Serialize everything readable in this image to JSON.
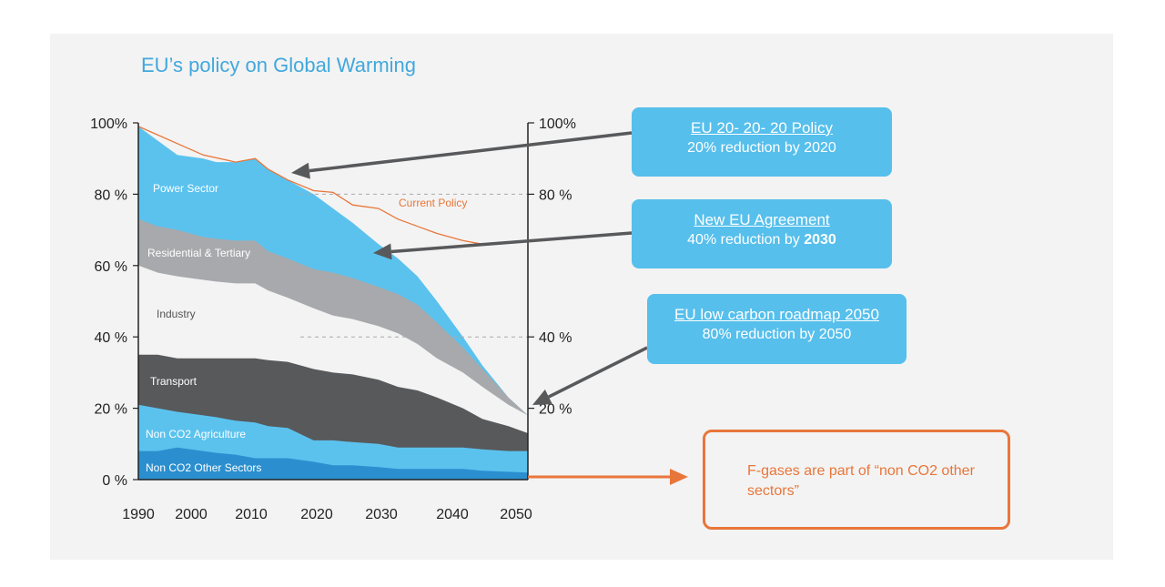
{
  "title": "EU’s policy on Global Warming",
  "chart_data": {
    "type": "area",
    "x": [
      1990,
      1993,
      1996,
      2000,
      2002,
      2005,
      2008,
      2010,
      2013,
      2017,
      2020,
      2023,
      2027,
      2030,
      2033,
      2036,
      2040,
      2043,
      2047,
      2050
    ],
    "x_ticks": [
      "1990",
      "2000",
      "2010",
      "2020",
      "2030",
      "2040",
      "2050"
    ],
    "y_ticks_left": [
      "0 %",
      "20 %",
      "40 %",
      "60 %",
      "80 %",
      "100%"
    ],
    "y_ticks_right": [
      "20 %",
      "40 %",
      "80 %",
      "100%"
    ],
    "ylim": [
      0,
      100
    ],
    "stacked_top": true,
    "series": [
      {
        "name": "Non CO2 Other Sectors",
        "color": "#2b8fcf",
        "values": [
          8,
          8,
          9,
          8,
          7.5,
          7,
          6,
          6,
          6,
          5,
          4,
          4,
          3.5,
          3,
          3,
          3,
          3,
          2.5,
          2.2,
          2
        ]
      },
      {
        "name": "Non CO2 Agriculture",
        "color": "#5bc2ee",
        "values": [
          21,
          20,
          19,
          18,
          17.5,
          16.5,
          16,
          15,
          14.5,
          11,
          11,
          10.5,
          10,
          9,
          9,
          9,
          9,
          8.5,
          8,
          8
        ]
      },
      {
        "name": "Transport",
        "color": "#58595b",
        "values": [
          35,
          35,
          34,
          34,
          34,
          34,
          34,
          33.5,
          33,
          31,
          30,
          29.5,
          28,
          26,
          25,
          23,
          20,
          17,
          15,
          13
        ]
      },
      {
        "name": "Industry",
        "color": "#f3f3f3",
        "values": [
          60,
          58,
          57,
          56,
          55.5,
          55,
          55,
          53,
          51,
          48,
          46,
          45,
          43,
          41,
          38,
          34,
          30,
          26,
          21,
          18
        ]
      },
      {
        "name": "Residential & Tertiary",
        "color": "#a7a9ac",
        "values": [
          73,
          71,
          70,
          68,
          67.5,
          67,
          67,
          64,
          62,
          59,
          58,
          56.5,
          54,
          52,
          49,
          44,
          37,
          31,
          23,
          18
        ]
      },
      {
        "name": "Power Sector",
        "color": "#5bc2ee",
        "values": [
          99,
          95,
          91,
          90,
          89,
          89,
          90,
          87,
          84,
          80,
          76,
          72,
          66,
          62,
          57,
          50,
          40,
          32,
          23,
          18
        ]
      }
    ],
    "current_policy": {
      "name": "Current Policy",
      "color": "#e8763a",
      "x": [
        1990,
        2000,
        2005,
        2008,
        2010,
        2013,
        2017,
        2020,
        2023,
        2027,
        2030,
        2033,
        2036,
        2040,
        2043
      ],
      "values": [
        99,
        91,
        89,
        90,
        87,
        84,
        81,
        80.5,
        77,
        76,
        73,
        71,
        69,
        67,
        66
      ]
    },
    "reference_lines": [
      80,
      40
    ],
    "annotations": [
      {
        "head": "EU 20- 20- 20 Policy",
        "sub": "20% reduction by 2020",
        "target_year": 2015,
        "target_value": 83
      },
      {
        "head": "New EU Agreement",
        "sub_prefix": "40% reduction by ",
        "sub_bold": "2030",
        "target_year": 2028,
        "target_value": 62
      },
      {
        "head": "EU low carbon roadmap 2050",
        "sub": "80% reduction by 2050",
        "target_year": 2050,
        "target_value": 20
      }
    ],
    "note": "F-gases are part of “non CO2 other sectors”"
  }
}
